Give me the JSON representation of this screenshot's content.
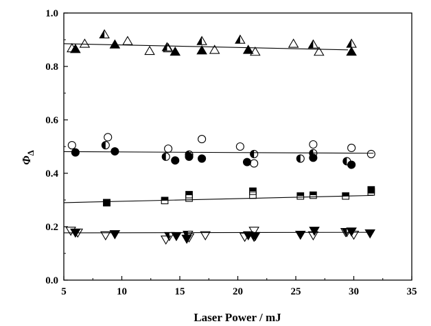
{
  "chart_data": {
    "type": "scatter",
    "xlabel": "Laser Power / mJ",
    "ylabel": {
      "symbol": "Φ",
      "subscript": "Δ"
    },
    "xlim": [
      5,
      35
    ],
    "ylim": [
      0.0,
      1.0
    ],
    "x_ticks": [
      "5",
      "10",
      "15",
      "20",
      "25",
      "30",
      "35"
    ],
    "y_ticks": [
      "0.0",
      "0.2",
      "0.4",
      "0.6",
      "0.8",
      "1.0"
    ],
    "grid": false,
    "series": [
      {
        "marker": "triangle-up-open",
        "x": [
          5.7,
          6.8,
          10.5,
          12.4,
          14,
          18,
          21.5,
          24.8,
          27
        ],
        "y": [
          0.868,
          0.885,
          0.895,
          0.858,
          0.868,
          0.862,
          0.855,
          0.885,
          0.855
        ]
      },
      {
        "marker": "triangle-up-half",
        "x": [
          8.5,
          13.9,
          16.9,
          20.2,
          26.5,
          29.8
        ],
        "y": [
          0.92,
          0.872,
          0.895,
          0.9,
          0.882,
          0.885
        ]
      },
      {
        "marker": "triangle-up-filled",
        "x": [
          6.0,
          9.4,
          14.6,
          16.9,
          20.9,
          29.8
        ],
        "y": [
          0.865,
          0.882,
          0.855,
          0.86,
          0.862,
          0.855
        ]
      },
      {
        "marker": "circle-open",
        "x": [
          5.7,
          8.8,
          14,
          16.9,
          20.2,
          21.4,
          26.5,
          29.8,
          31.5
        ],
        "y": [
          0.505,
          0.535,
          0.492,
          0.528,
          0.5,
          0.437,
          0.508,
          0.495,
          0.472
        ]
      },
      {
        "marker": "circle-half",
        "x": [
          8.6,
          13.8,
          15.8,
          21.4,
          25.4,
          26.5,
          29.4
        ],
        "y": [
          0.505,
          0.462,
          0.47,
          0.472,
          0.455,
          0.475,
          0.445
        ]
      },
      {
        "marker": "circle-filled",
        "x": [
          6.0,
          9.4,
          14.6,
          15.8,
          16.9,
          20.8,
          26.5,
          29.8
        ],
        "y": [
          0.478,
          0.482,
          0.448,
          0.462,
          0.455,
          0.442,
          0.458,
          0.432
        ]
      },
      {
        "marker": "square-open",
        "x": [
          15.8,
          21.3,
          31.5
        ],
        "y": [
          0.307,
          0.318,
          0.33
        ]
      },
      {
        "marker": "square-half",
        "x": [
          8.7,
          13.7,
          15.8,
          21.3,
          25.4,
          26.5,
          29.3
        ],
        "y": [
          0.29,
          0.298,
          0.32,
          0.333,
          0.315,
          0.318,
          0.315
        ]
      },
      {
        "marker": "square-filled",
        "x": [
          8.7,
          31.5
        ],
        "y": [
          0.29,
          0.338
        ]
      },
      {
        "marker": "triangle-down-open",
        "x": [
          5.6,
          6.2,
          8.6,
          13.8,
          15.8,
          17.2,
          20.6,
          21.4,
          26.5,
          29.3,
          30
        ],
        "y": [
          0.185,
          0.178,
          0.168,
          0.152,
          0.16,
          0.168,
          0.162,
          0.185,
          0.168,
          0.18,
          0.17
        ]
      },
      {
        "marker": "triangle-down-half",
        "x": [
          14.1,
          15.7,
          21.4,
          29.4
        ],
        "y": [
          0.165,
          0.17,
          0.162,
          0.18
        ]
      },
      {
        "marker": "triangle-down-filled",
        "x": [
          6.0,
          9.4,
          14.7,
          15.6,
          20.9,
          21.5,
          25.4,
          26.6,
          29.8,
          31.4
        ],
        "y": [
          0.178,
          0.172,
          0.165,
          0.155,
          0.168,
          0.165,
          0.17,
          0.185,
          0.182,
          0.175
        ]
      }
    ],
    "trend_lines": [
      {
        "x": [
          5,
          29.5
        ],
        "y": [
          0.885,
          0.862
        ]
      },
      {
        "x": [
          5,
          31.7
        ],
        "y": [
          0.481,
          0.475
        ]
      },
      {
        "x": [
          5,
          31.7
        ],
        "y": [
          0.29,
          0.317
        ]
      },
      {
        "x": [
          5,
          31.7
        ],
        "y": [
          0.177,
          0.179
        ]
      }
    ]
  }
}
